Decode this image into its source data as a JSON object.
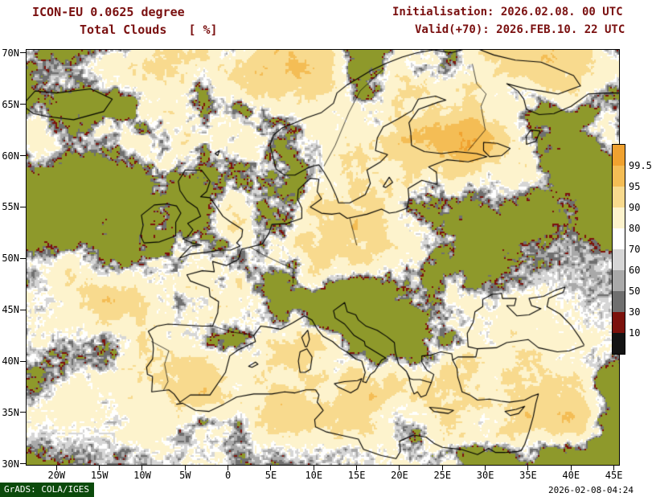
{
  "header": {
    "model": "ICON-EU 0.0625 degree",
    "product": "Total Clouds   [ %]",
    "init": "Initialisation: 2026.02.08. 00 UTC",
    "valid": "Valid(+70): 2026.FEB.10. 22 UTC",
    "text_color": "#7a1010"
  },
  "axes": {
    "lat_ticks": [
      {
        "label": "70N",
        "value": 70
      },
      {
        "label": "65N",
        "value": 65
      },
      {
        "label": "60N",
        "value": 60
      },
      {
        "label": "55N",
        "value": 55
      },
      {
        "label": "50N",
        "value": 50
      },
      {
        "label": "45N",
        "value": 45
      },
      {
        "label": "40N",
        "value": 40
      },
      {
        "label": "35N",
        "value": 35
      },
      {
        "label": "30N",
        "value": 30
      }
    ],
    "lon_ticks": [
      {
        "label": "20W",
        "value": -20
      },
      {
        "label": "15W",
        "value": -15
      },
      {
        "label": "10W",
        "value": -10
      },
      {
        "label": "5W",
        "value": -5
      },
      {
        "label": "0",
        "value": 0
      },
      {
        "label": "5E",
        "value": 5
      },
      {
        "label": "10E",
        "value": 10
      },
      {
        "label": "15E",
        "value": 15
      },
      {
        "label": "20E",
        "value": 20
      },
      {
        "label": "25E",
        "value": 25
      },
      {
        "label": "30E",
        "value": 30
      },
      {
        "label": "35E",
        "value": 35
      },
      {
        "label": "40E",
        "value": 40
      },
      {
        "label": "45E",
        "value": 45
      }
    ]
  },
  "colorbar": {
    "labels": [
      "99.5",
      "95",
      "90",
      "80",
      "70",
      "60",
      "50",
      "30",
      "10"
    ],
    "colors_top_to_bottom": [
      "#f0a230",
      "#f4bd55",
      "#f8da8e",
      "#fdf3cd",
      "#ffffff",
      "#d6d6d6",
      "#a9a9a9",
      "#6f6f6f",
      "#7c120c",
      "#141414"
    ],
    "unit": "%"
  },
  "map": {
    "background_color": "#8e992b",
    "coastline_color": "#000000",
    "lon_min": -23.5,
    "lon_max": 45.6,
    "lat_min": 29.9,
    "lat_max": 70.3
  },
  "footer": {
    "credit": "GrADS: COLA/IGES",
    "credit_bg": "#0b4a0b",
    "timestamp": "2026-02-08-04:24"
  }
}
